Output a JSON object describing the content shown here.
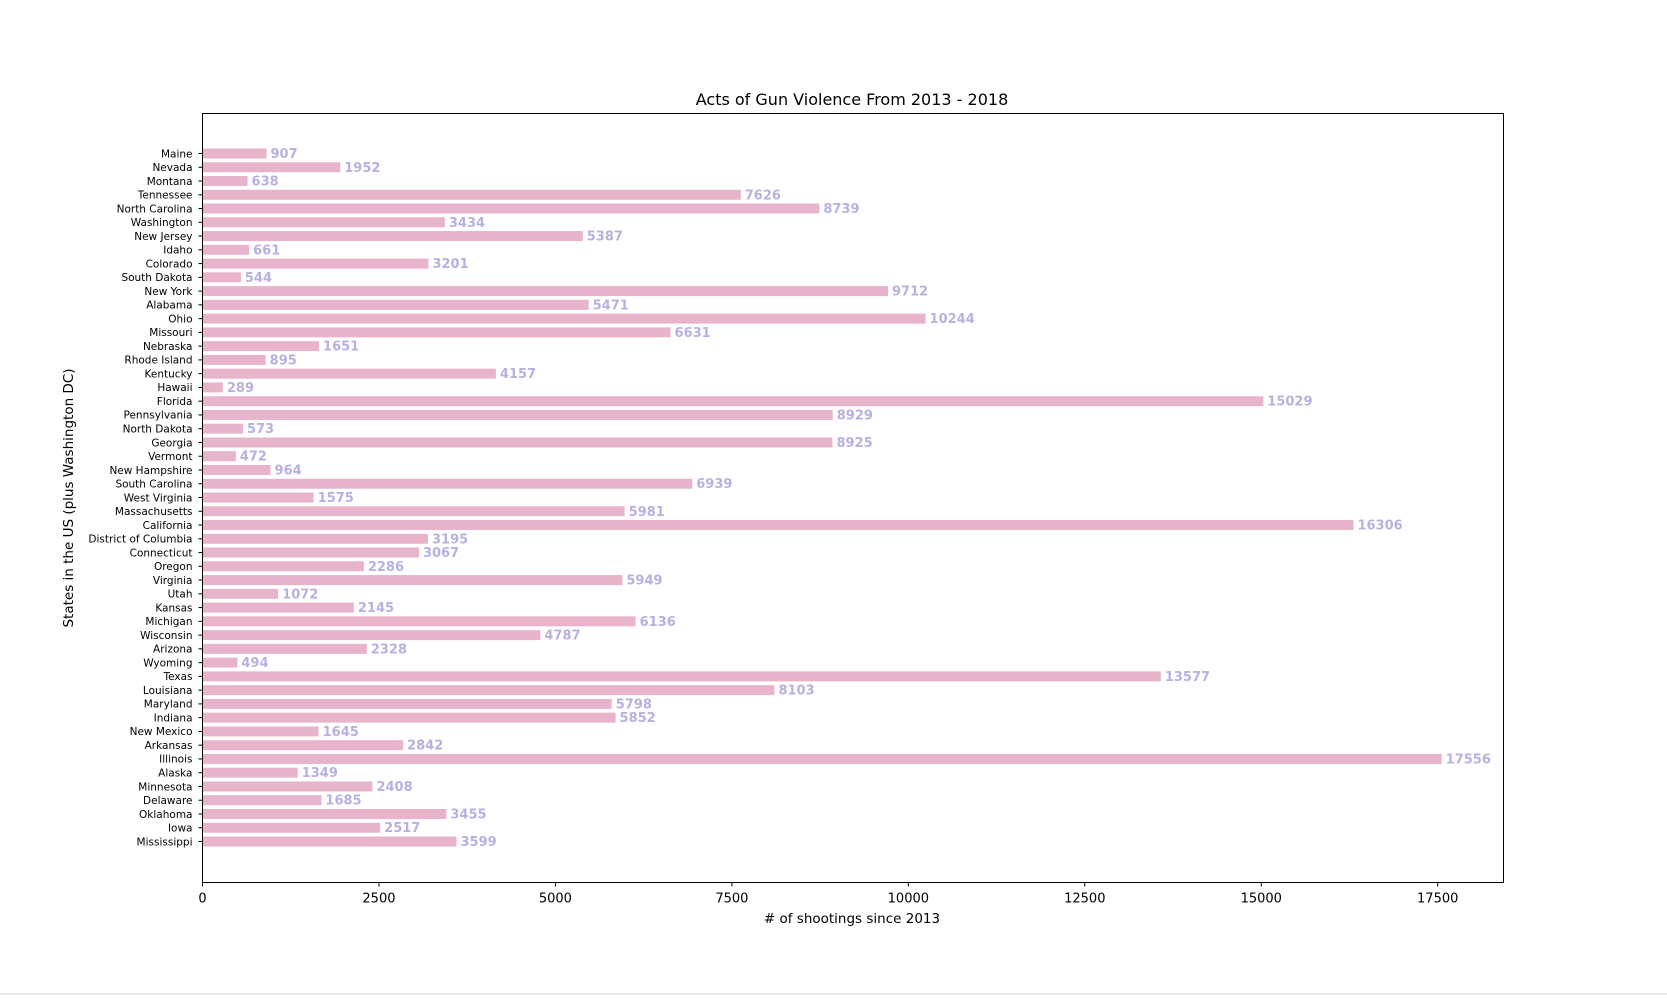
{
  "chart_data": {
    "type": "bar",
    "orientation": "horizontal",
    "title": "Acts of Gun Violence From 2013 - 2018",
    "xlabel": "# of shootings since 2013",
    "ylabel": "States in the US (plus Washington DC)",
    "xlim": [
      0,
      18432
    ],
    "xticks": [
      0,
      2500,
      5000,
      7500,
      10000,
      12500,
      15000,
      17500
    ],
    "grid": false,
    "legend": "none",
    "bar_color": "#e8b4cb",
    "label_color": "#b8b0e0",
    "categories": [
      "Maine",
      "Nevada",
      "Montana",
      "Tennessee",
      "North Carolina",
      "Washington",
      "New Jersey",
      "Idaho",
      "Colorado",
      "South Dakota",
      "New York",
      "Alabama",
      "Ohio",
      "Missouri",
      "Nebraska",
      "Rhode Island",
      "Kentucky",
      "Hawaii",
      "Florida",
      "Pennsylvania",
      "North Dakota",
      "Georgia",
      "Vermont",
      "New Hampshire",
      "South Carolina",
      "West Virginia",
      "Massachusetts",
      "California",
      "District of Columbia",
      "Connecticut",
      "Oregon",
      "Virginia",
      "Utah",
      "Kansas",
      "Michigan",
      "Wisconsin",
      "Arizona",
      "Wyoming",
      "Texas",
      "Louisiana",
      "Maryland",
      "Indiana",
      "New Mexico",
      "Arkansas",
      "Illinois",
      "Alaska",
      "Minnesota",
      "Delaware",
      "Oklahoma",
      "Iowa",
      "Mississippi"
    ],
    "values": [
      907,
      1952,
      638,
      7626,
      8739,
      3434,
      5387,
      661,
      3201,
      544,
      9712,
      5471,
      10244,
      6631,
      1651,
      895,
      4157,
      289,
      15029,
      8929,
      573,
      8925,
      472,
      964,
      6939,
      1575,
      5981,
      16306,
      3195,
      3067,
      2286,
      5949,
      1072,
      2145,
      6136,
      4787,
      2328,
      494,
      13577,
      8103,
      5798,
      5852,
      1645,
      2842,
      17556,
      1349,
      2408,
      1685,
      3455,
      2517,
      3599
    ]
  }
}
